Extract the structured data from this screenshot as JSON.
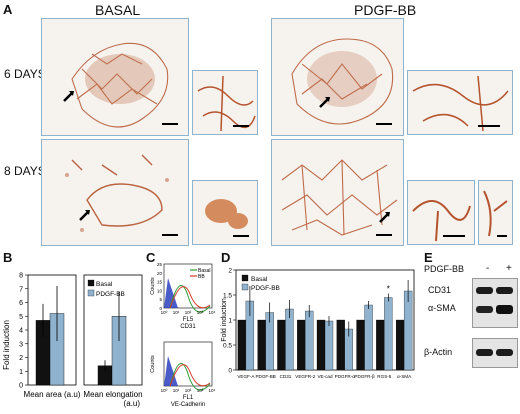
{
  "panel_labels": {
    "A": "A",
    "B": "B",
    "C": "C",
    "D": "D",
    "E": "E"
  },
  "panelA": {
    "conditions": [
      "BASAL",
      "PDGF-BB"
    ],
    "rows": [
      "6 DAYS",
      "8 DAYS"
    ]
  },
  "colors": {
    "basal_bar": "#111111",
    "pdgf_bar": "#8fb3cf",
    "frame": "#8fb3cf",
    "stain": "#b5532d"
  },
  "chart_data": [
    {
      "type": "bar",
      "ylabel": "Fold induction",
      "ylim": [
        0,
        8
      ],
      "yticks": [
        "0",
        "1",
        "2",
        "3",
        "4",
        "5",
        "6",
        "7",
        "8"
      ],
      "categories": [
        "Mean area (a.u)"
      ],
      "series": [
        {
          "name": "Basal",
          "values": [
            4.7
          ],
          "errors": [
            1.2
          ]
        },
        {
          "name": "PDGF-BB",
          "values": [
            5.2
          ],
          "errors": [
            2.0
          ]
        }
      ]
    },
    {
      "type": "bar",
      "ylim": [
        0,
        8
      ],
      "categories": [
        "Mean elongation (a.u)"
      ],
      "legend": [
        "Basal",
        "PDGF-BB"
      ],
      "series": [
        {
          "name": "Basal",
          "values": [
            1.4
          ],
          "errors": [
            0.4
          ]
        },
        {
          "name": "PDGF-BB",
          "values": [
            5.0
          ],
          "errors": [
            1.8
          ]
        }
      ]
    },
    {
      "type": "line",
      "ylabel": "Counts",
      "xlabel": "FL5 CD31",
      "xticks": [
        "10⁰",
        "10¹",
        "10²",
        "10³",
        "10⁴"
      ],
      "yticks": [
        "0",
        "5",
        "10",
        "15",
        "20",
        "25"
      ],
      "legend": [
        "Basal",
        "BB"
      ]
    },
    {
      "type": "line",
      "ylabel": "Counts",
      "xlabel": "FL1 VE-Cadherin",
      "xticks": [
        "10⁰",
        "10¹",
        "10²",
        "10³",
        "10⁴"
      ]
    },
    {
      "type": "bar",
      "ylabel": "Fold induction",
      "ylim": [
        0,
        2
      ],
      "yticks": [
        "0",
        "0.5",
        "1",
        "1.5",
        "2"
      ],
      "categories": [
        "VEGF-A",
        "PDGF-BB",
        "CD31",
        "VEGFR-2",
        "VE-cad",
        "PDGFR-α",
        "PDGFR-β",
        "RGS-5",
        "α-SMA"
      ],
      "series": [
        {
          "name": "Basal",
          "values": [
            1,
            1,
            1,
            1,
            1,
            1,
            1,
            1,
            1
          ]
        },
        {
          "name": "PDGF-BB",
          "values": [
            1.38,
            1.15,
            1.22,
            1.18,
            0.98,
            0.82,
            1.3,
            1.45,
            1.58
          ],
          "errors": [
            0.3,
            0.2,
            0.18,
            0.12,
            0.1,
            0.15,
            0.08,
            0.08,
            0.22
          ]
        }
      ],
      "annotations": [
        "*"
      ]
    }
  ],
  "panelE": {
    "treatment_label": "PDGF-BB",
    "minus": "-",
    "plus": "+",
    "bands": [
      "CD31",
      "α-SMA",
      "β-Actin"
    ]
  }
}
